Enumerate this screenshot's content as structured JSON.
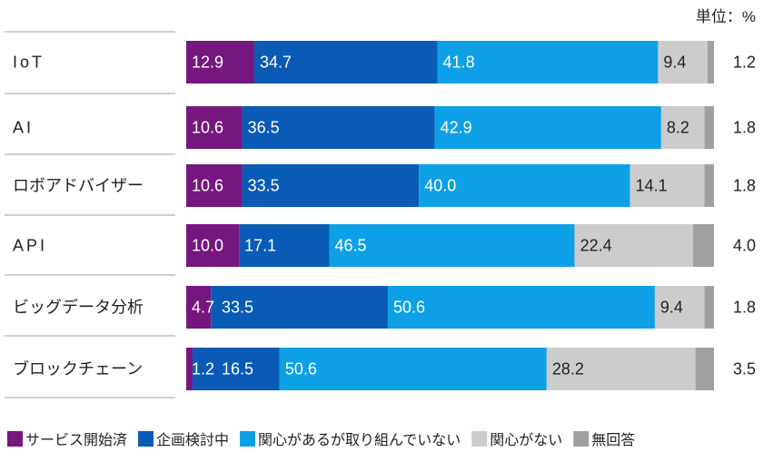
{
  "chart_data": {
    "type": "bar",
    "orientation": "horizontal",
    "stacked": true,
    "unit_label": "単位：%",
    "categories": [
      "IoT",
      "AI",
      "ロボアドバイザー",
      "API",
      "ビッグデータ分析",
      "ブロックチェーン"
    ],
    "series": [
      {
        "name": "サービス開始済",
        "color": "#76177f",
        "values": [
          12.9,
          10.6,
          10.6,
          10.0,
          4.7,
          1.2
        ]
      },
      {
        "name": "企画検討中",
        "color": "#0a5bb5",
        "values": [
          34.7,
          36.5,
          33.5,
          17.1,
          33.5,
          16.5
        ]
      },
      {
        "name": "関心があるが取り組んでいない",
        "color": "#0ea0e6",
        "values": [
          41.8,
          42.9,
          40.0,
          46.5,
          50.6,
          50.6
        ]
      },
      {
        "name": "関心がない",
        "color": "#cccccc",
        "values": [
          9.4,
          8.2,
          14.1,
          22.4,
          9.4,
          28.2
        ]
      },
      {
        "name": "無回答",
        "color": "#a0a0a0",
        "values": [
          1.2,
          1.8,
          1.8,
          4.0,
          1.8,
          3.5
        ]
      }
    ],
    "xlim": [
      0,
      100
    ],
    "grid": false,
    "legend": "bottom"
  }
}
